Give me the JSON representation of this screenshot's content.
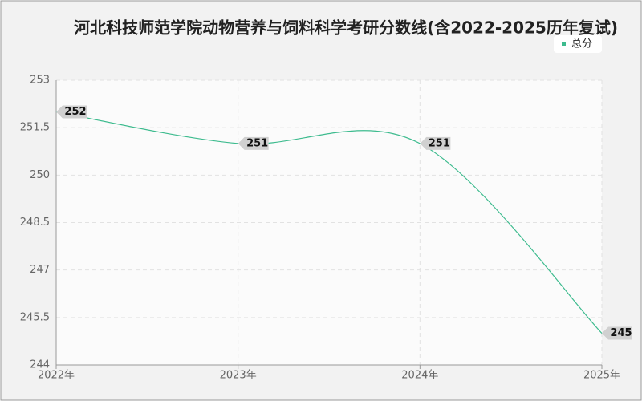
{
  "chart_data": {
    "type": "line",
    "title": "河北科技师范学院动物营养与饲料科学考研分数线(含2022-2025历年复试)",
    "categories": [
      "2022年",
      "2023年",
      "2024年",
      "2025年"
    ],
    "series": [
      {
        "name": "总分",
        "color": "#3dbb8e",
        "values": [
          252,
          251,
          251,
          245
        ]
      }
    ],
    "ylim": [
      244,
      253
    ],
    "yticks": [
      244,
      245.5,
      247,
      248.5,
      250,
      251.5,
      253
    ],
    "grid": true,
    "legend": "top-right"
  }
}
